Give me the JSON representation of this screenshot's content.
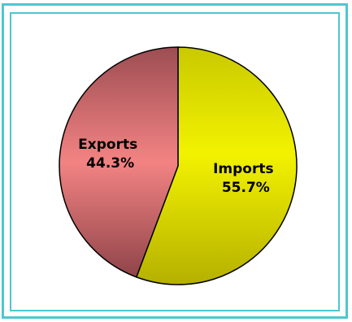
{
  "chart_data": {
    "type": "pie",
    "title": "",
    "categories": [
      "Imports",
      "Exports"
    ],
    "values": [
      55.7,
      44.3
    ],
    "value_labels": [
      "55.7%",
      "44.3%"
    ],
    "colors": [
      "#eaea00",
      "#f08080"
    ],
    "start_angle_deg": 0,
    "direction": "clockwise",
    "legend": "none"
  }
}
